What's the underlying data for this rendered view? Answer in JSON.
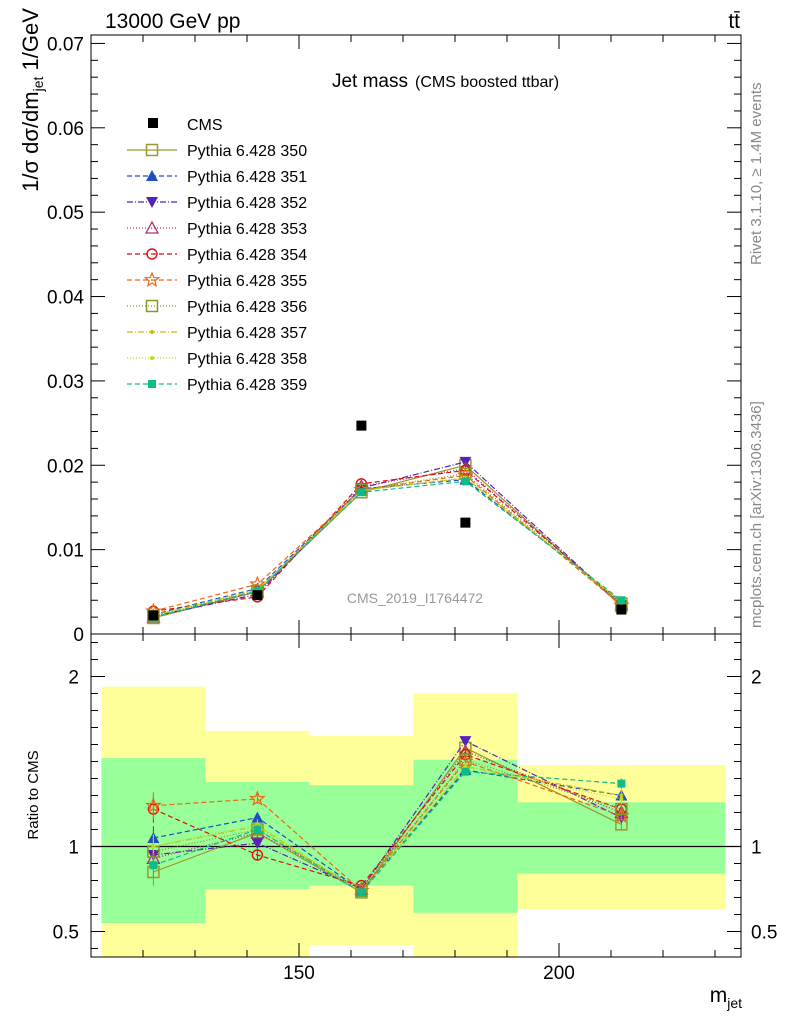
{
  "header": {
    "energy_label": "13000 GeV pp",
    "process_label": "tt̄"
  },
  "side_labels": {
    "rivet": "Rivet 3.1.10, ≥ 1.4M events",
    "mcplots": "mcplots.cern.ch [arXiv:1306.3436]"
  },
  "chart_data": {
    "type": "line",
    "title": "Jet mass",
    "subtitle": "(CMS boosted ttbar)",
    "watermark": "CMS_2019_I1764472",
    "xlabel": "m_jet",
    "ylabel": "1/σ dσ/dm_jet 1/GeV",
    "ratio_ylabel": "Ratio to CMS",
    "xlim": [
      110,
      235
    ],
    "ylim": [
      0,
      0.071
    ],
    "ratio_ylim": [
      0.35,
      2.25
    ],
    "x_ticks": [
      150,
      200
    ],
    "y_ticks": [
      0,
      0.01,
      0.02,
      0.03,
      0.04,
      0.05,
      0.06,
      0.07
    ],
    "y_tick_labels": [
      "0",
      "0.01",
      "0.02",
      "0.03",
      "0.04",
      "0.05",
      "0.06",
      "0.07"
    ],
    "ratio_ticks": [
      0.5,
      1,
      2
    ],
    "ratio_tick_labels": [
      "0.5",
      "1",
      "2"
    ],
    "bin_edges": [
      112,
      132,
      152,
      172,
      192,
      232
    ],
    "x": [
      122,
      142,
      162,
      182,
      212
    ],
    "data": {
      "name": "CMS",
      "values": [
        0.0022,
        0.0046,
        0.0232,
        0.0126,
        0.0029
      ],
      "display_y": [
        null,
        null,
        0.0247,
        0.0132,
        null
      ]
    },
    "band_green": [
      [
        0.55,
        1.52
      ],
      [
        0.75,
        1.38
      ],
      [
        0.77,
        1.36
      ],
      [
        0.61,
        1.51
      ],
      [
        0.84,
        1.26
      ]
    ],
    "band_yellow": [
      [
        0.35,
        1.94
      ],
      [
        0.35,
        1.68
      ],
      [
        0.42,
        1.65
      ],
      [
        0.35,
        1.9
      ],
      [
        0.63,
        1.48
      ]
    ],
    "series": [
      {
        "name": "Pythia 6.428 350",
        "color": "#999933",
        "dash": "",
        "marker": "square-open",
        "values": [
          0.0019,
          0.005,
          0.0168,
          0.02,
          0.0033
        ],
        "ratio": [
          0.85,
          1.08,
          0.73,
          1.58,
          1.13
        ],
        "err": [
          0.08,
          0.03,
          0.02,
          0.02,
          0.03
        ]
      },
      {
        "name": "Pythia 6.428 351",
        "color": "#1f4fbf",
        "dash": "5,3",
        "marker": "triangle-up",
        "values": [
          0.0023,
          0.0054,
          0.0172,
          0.0183,
          0.0038
        ],
        "ratio": [
          1.05,
          1.17,
          0.74,
          1.45,
          1.3
        ],
        "err": [
          0.07,
          0.03,
          0.02,
          0.02,
          0.03
        ]
      },
      {
        "name": "Pythia 6.428 352",
        "color": "#5522bb",
        "dash": "6,2,1,2",
        "marker": "triangle-down",
        "values": [
          0.0021,
          0.0047,
          0.0173,
          0.0204,
          0.0034
        ],
        "ratio": [
          0.95,
          1.02,
          0.75,
          1.62,
          1.17
        ],
        "err": [
          0.07,
          0.03,
          0.02,
          0.02,
          0.03
        ]
      },
      {
        "name": "Pythia 6.428 353",
        "color": "#b0306f",
        "dash": "1,2",
        "marker": "triangle-open",
        "values": [
          0.002,
          0.005,
          0.0175,
          0.0196,
          0.0035
        ],
        "ratio": [
          0.93,
          1.08,
          0.75,
          1.56,
          1.2
        ],
        "err": [
          0.07,
          0.03,
          0.02,
          0.02,
          0.03
        ]
      },
      {
        "name": "Pythia 6.428 354",
        "color": "#dd1111",
        "dash": "5,3",
        "marker": "circle-open",
        "values": [
          0.0027,
          0.0044,
          0.0178,
          0.0194,
          0.0036
        ],
        "ratio": [
          1.22,
          0.95,
          0.77,
          1.54,
          1.22
        ],
        "err": [
          0.08,
          0.03,
          0.02,
          0.02,
          0.03
        ]
      },
      {
        "name": "Pythia 6.428 355",
        "color": "#ee6611",
        "dash": "5,3",
        "marker": "star-open",
        "values": [
          0.0027,
          0.0059,
          0.0171,
          0.0188,
          0.0034
        ],
        "ratio": [
          1.24,
          1.28,
          0.74,
          1.5,
          1.18
        ],
        "err": [
          0.08,
          0.03,
          0.02,
          0.02,
          0.03
        ]
      },
      {
        "name": "Pythia 6.428 356",
        "color": "#889922",
        "dash": "1,2",
        "marker": "square-open",
        "values": [
          0.0021,
          0.0051,
          0.0171,
          0.019,
          0.0036
        ],
        "ratio": [
          0.97,
          1.1,
          0.74,
          1.51,
          1.22
        ],
        "err": [
          0.07,
          0.03,
          0.02,
          0.02,
          0.03
        ]
      },
      {
        "name": "Pythia 6.428 357",
        "color": "#ccbb11",
        "dash": "6,2,1,2",
        "marker": "dot-small",
        "values": [
          0.0022,
          0.0052,
          0.017,
          0.0185,
          0.0038
        ],
        "ratio": [
          1.0,
          1.12,
          0.73,
          1.47,
          1.3
        ],
        "err": [
          0.07,
          0.03,
          0.02,
          0.02,
          0.03
        ]
      },
      {
        "name": "Pythia 6.428 358",
        "color": "#bbdd22",
        "dash": "1,2",
        "marker": "dot-small",
        "values": [
          0.0022,
          0.0053,
          0.017,
          0.0185,
          0.0037
        ],
        "ratio": [
          1.0,
          1.13,
          0.73,
          1.47,
          1.28
        ],
        "err": [
          0.07,
          0.03,
          0.02,
          0.02,
          0.03
        ]
      },
      {
        "name": "Pythia 6.428 359",
        "color": "#11bb88",
        "dash": "5,3",
        "marker": "square-filled",
        "values": [
          0.002,
          0.0051,
          0.0168,
          0.0181,
          0.004
        ],
        "ratio": [
          0.89,
          1.1,
          0.73,
          1.44,
          1.37
        ],
        "err": [
          0.07,
          0.03,
          0.02,
          0.02,
          0.03
        ]
      }
    ]
  }
}
